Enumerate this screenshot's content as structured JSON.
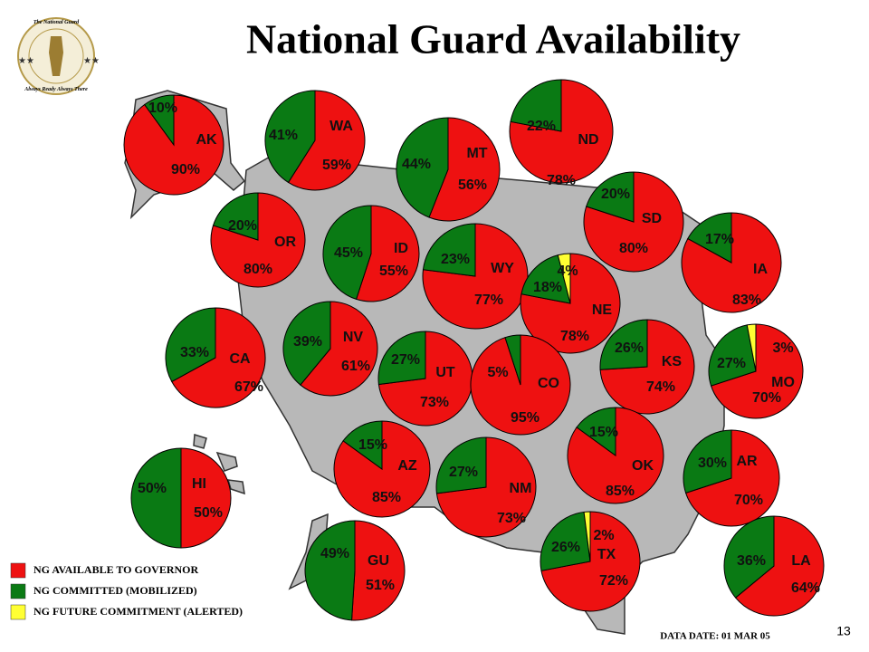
{
  "title": "National Guard Availability",
  "logo": {
    "top": "The National Guard",
    "bottom": "Always Ready  Always There"
  },
  "legend": [
    {
      "name": "NG AVAILABLE TO GOVERNOR",
      "color": "#ee1111"
    },
    {
      "name": "NG COMMITTED (MOBILIZED)",
      "color": "#0a7a14"
    },
    {
      "name": "NG FUTURE COMMITMENT (ALERTED)",
      "color": "#ffff33"
    }
  ],
  "data_date": "DATA DATE: 01 MAR 05",
  "page_number": "13",
  "chart_data": [
    {
      "type": "pie",
      "label": "AK",
      "values": [
        90,
        10
      ],
      "value_labels": [
        "90%",
        "10%"
      ]
    },
    {
      "type": "pie",
      "label": "WA",
      "values": [
        59,
        41
      ],
      "value_labels": [
        "59%",
        "41%"
      ]
    },
    {
      "type": "pie",
      "label": "MT",
      "values": [
        56,
        44
      ],
      "value_labels": [
        "56%",
        "44%"
      ]
    },
    {
      "type": "pie",
      "label": "ND",
      "values": [
        78,
        22
      ],
      "value_labels": [
        "78%",
        "22%"
      ]
    },
    {
      "type": "pie",
      "label": "SD",
      "values": [
        80,
        20
      ],
      "value_labels": [
        "80%",
        "20%"
      ]
    },
    {
      "type": "pie",
      "label": "OR",
      "values": [
        80,
        20
      ],
      "value_labels": [
        "80%",
        "20%"
      ]
    },
    {
      "type": "pie",
      "label": "ID",
      "values": [
        55,
        45
      ],
      "value_labels": [
        "55%",
        "45%"
      ]
    },
    {
      "type": "pie",
      "label": "WY",
      "values": [
        77,
        23
      ],
      "value_labels": [
        "77%",
        "23%"
      ]
    },
    {
      "type": "pie",
      "label": "NE",
      "values": [
        78,
        18,
        4
      ],
      "value_labels": [
        "78%",
        "18%",
        "4%"
      ]
    },
    {
      "type": "pie",
      "label": "IA",
      "values": [
        83,
        17
      ],
      "value_labels": [
        "83%",
        "17%"
      ]
    },
    {
      "type": "pie",
      "label": "CA",
      "values": [
        67,
        33
      ],
      "value_labels": [
        "67%",
        "33%"
      ]
    },
    {
      "type": "pie",
      "label": "NV",
      "values": [
        61,
        39
      ],
      "value_labels": [
        "61%",
        "39%"
      ]
    },
    {
      "type": "pie",
      "label": "UT",
      "values": [
        73,
        27
      ],
      "value_labels": [
        "73%",
        "27%"
      ]
    },
    {
      "type": "pie",
      "label": "CO",
      "values": [
        95,
        5
      ],
      "value_labels": [
        "95%",
        "5%"
      ]
    },
    {
      "type": "pie",
      "label": "KS",
      "values": [
        74,
        26
      ],
      "value_labels": [
        "74%",
        "26%"
      ]
    },
    {
      "type": "pie",
      "label": "MO",
      "values": [
        70,
        27,
        3
      ],
      "value_labels": [
        "70%",
        "27%",
        "3%"
      ]
    },
    {
      "type": "pie",
      "label": "AZ",
      "values": [
        85,
        15
      ],
      "value_labels": [
        "85%",
        "15%"
      ]
    },
    {
      "type": "pie",
      "label": "NM",
      "values": [
        73,
        27
      ],
      "value_labels": [
        "73%",
        "27%"
      ]
    },
    {
      "type": "pie",
      "label": "OK",
      "values": [
        85,
        15
      ],
      "value_labels": [
        "85%",
        "15%"
      ]
    },
    {
      "type": "pie",
      "label": "AR",
      "values": [
        70,
        30
      ],
      "value_labels": [
        "70%",
        "30%"
      ]
    },
    {
      "type": "pie",
      "label": "HI",
      "values": [
        50,
        50
      ],
      "value_labels": [
        "50%",
        "50%"
      ]
    },
    {
      "type": "pie",
      "label": "GU",
      "values": [
        51,
        49
      ],
      "value_labels": [
        "51%",
        "49%"
      ]
    },
    {
      "type": "pie",
      "label": "TX",
      "values": [
        72,
        26,
        2
      ],
      "value_labels": [
        "72%",
        "26%",
        "2%"
      ]
    },
    {
      "type": "pie",
      "label": "LA",
      "values": [
        64,
        36
      ],
      "value_labels": [
        "64%",
        "36%"
      ]
    }
  ]
}
